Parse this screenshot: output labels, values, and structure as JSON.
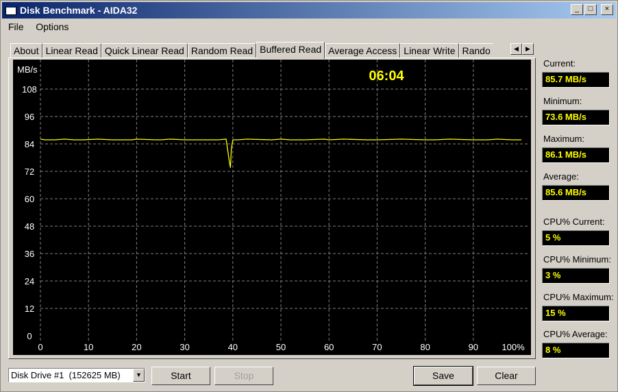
{
  "window": {
    "title": "Disk Benchmark - AIDA32",
    "minimize": "_",
    "maximize": "□",
    "close": "×"
  },
  "menu": [
    "File",
    "Options"
  ],
  "tabs": [
    {
      "label": "About"
    },
    {
      "label": "Linear Read"
    },
    {
      "label": "Quick Linear Read"
    },
    {
      "label": "Random Read"
    },
    {
      "label": "Buffered Read",
      "active": true
    },
    {
      "label": "Average Access"
    },
    {
      "label": "Linear Write"
    },
    {
      "label": "Rando"
    }
  ],
  "tab_scroll": {
    "left": "◀",
    "right": "▶"
  },
  "chart_data": {
    "type": "line",
    "ylabel": "MB/s",
    "timer": "06:04",
    "ylim": [
      0,
      120
    ],
    "xlim": [
      0,
      100
    ],
    "grid": true,
    "yticks": [
      "0",
      "12",
      "24",
      "36",
      "48",
      "60",
      "72",
      "84",
      "96",
      "108"
    ],
    "xticks": [
      "0",
      "10",
      "20",
      "30",
      "40",
      "50",
      "60",
      "70",
      "80",
      "90",
      "100%"
    ],
    "colors": {
      "line": "#ffff00",
      "grid": "#808080",
      "background": "#000000",
      "text": "#ffffff",
      "timer": "#ffff00"
    },
    "series": [
      {
        "x": [
          0,
          1,
          3,
          5,
          7,
          9,
          12,
          15,
          19,
          20,
          24,
          25,
          27,
          30,
          32,
          37,
          38.6,
          39.3,
          39.5,
          39.7,
          40,
          40.2,
          41,
          43,
          48,
          50,
          52,
          55,
          59,
          60,
          63,
          68,
          70,
          75,
          80,
          82,
          85,
          90,
          93,
          95,
          98,
          100
        ],
        "y": [
          86.1,
          85.8,
          85.8,
          86.1,
          85.8,
          85.8,
          86.1,
          85.8,
          85.8,
          86.1,
          85.8,
          85.8,
          86.1,
          85.8,
          85.8,
          85.8,
          86.1,
          76,
          73.6,
          82,
          85.7,
          85.8,
          85.8,
          86.1,
          85.8,
          86.1,
          85.8,
          85.8,
          86.1,
          85.8,
          86.1,
          85.8,
          85.8,
          86.1,
          85.8,
          85.8,
          86.1,
          85.8,
          85.8,
          86.1,
          85.8,
          85.8
        ]
      }
    ]
  },
  "stats": [
    {
      "label": "Current:",
      "value": "85.7 MB/s"
    },
    {
      "label": "Minimum:",
      "value": "73.6 MB/s"
    },
    {
      "label": "Maximum:",
      "value": "86.1 MB/s"
    },
    {
      "label": "Average:",
      "value": "85.6 MB/s"
    },
    {
      "label": "CPU% Current:",
      "value": "5 %"
    },
    {
      "label": "CPU% Minimum:",
      "value": "3 %"
    },
    {
      "label": "CPU% Maximum:",
      "value": "15 %"
    },
    {
      "label": "CPU% Average:",
      "value": "8 %"
    }
  ],
  "bottom": {
    "drive": "Disk Drive #1  (152625 MB)",
    "start": "Start",
    "stop": "Stop",
    "save": "Save",
    "clear": "Clear"
  }
}
